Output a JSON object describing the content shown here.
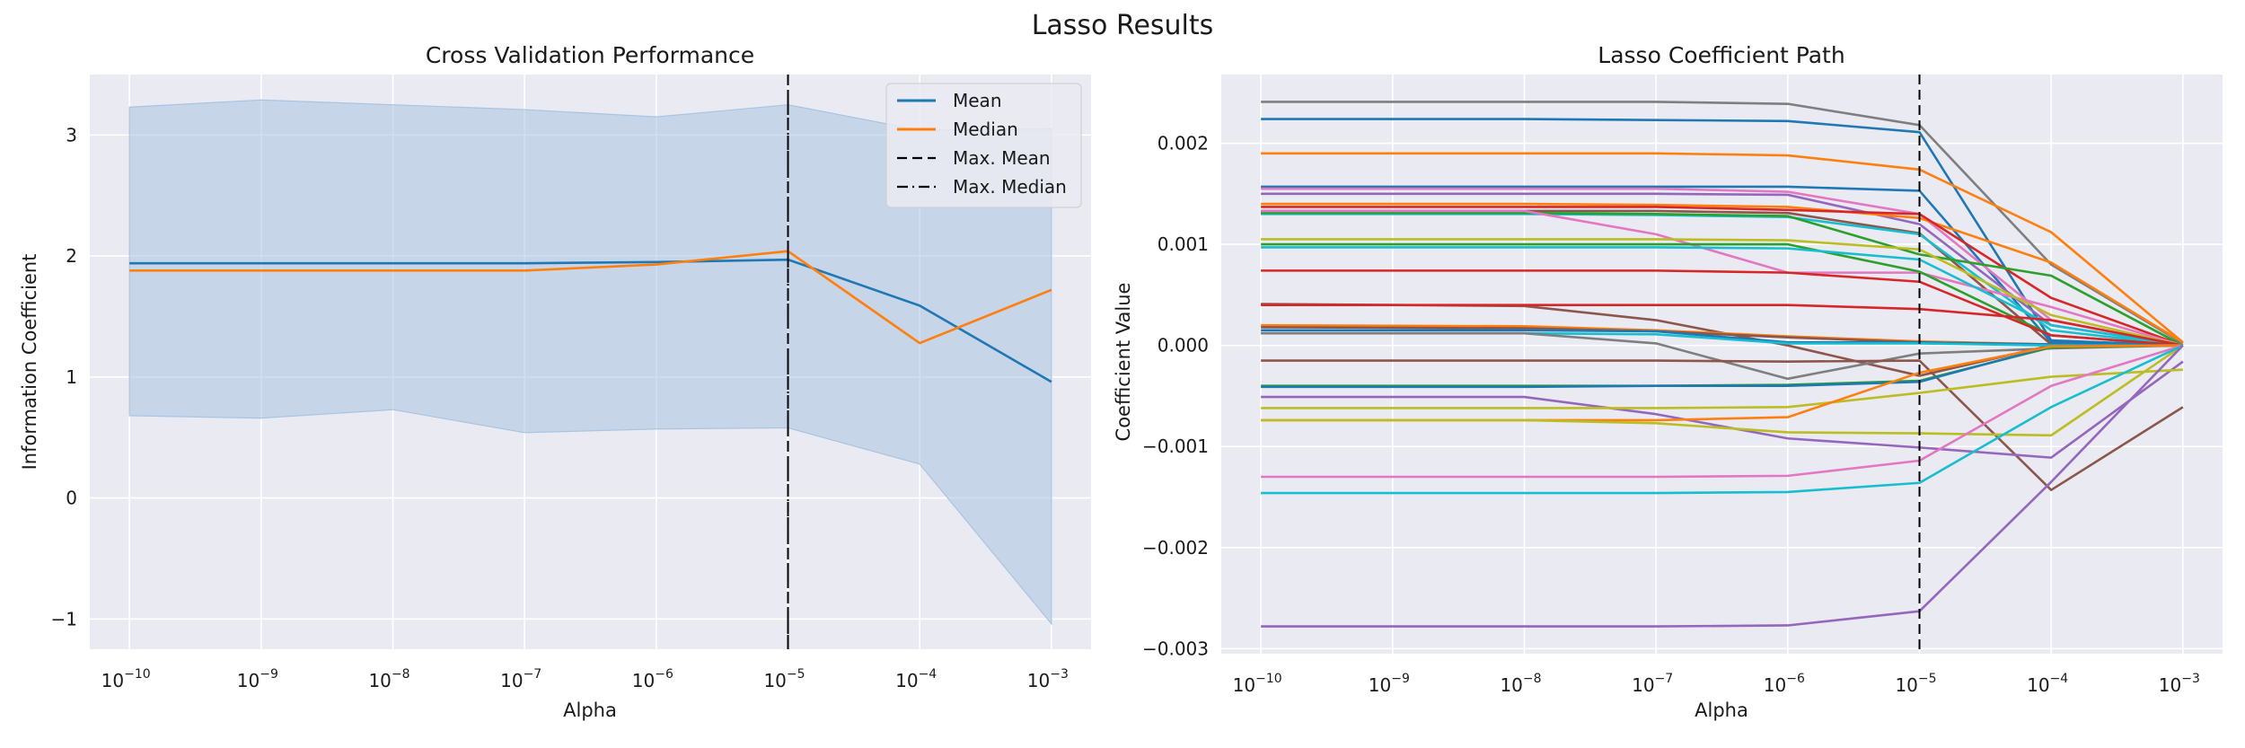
{
  "figure_title": "Lasso Results",
  "chart_data": [
    {
      "type": "line",
      "title": "Cross Validation Performance",
      "xlabel": "Alpha",
      "ylabel": "Information Coefficient",
      "xscale": "log",
      "x": [
        1e-10,
        1e-09,
        1e-08,
        1e-07,
        1e-06,
        1e-05,
        0.0001,
        0.001
      ],
      "xtick_exponents": [
        "−10",
        "−9",
        "−8",
        "−7",
        "−6",
        "−5",
        "−4",
        "−3"
      ],
      "xtick_base": "10",
      "xlim": [
        5e-11,
        0.002
      ],
      "ylim": [
        -1.25,
        3.5
      ],
      "yticks": [
        -1,
        0,
        1,
        2,
        3
      ],
      "ytick_labels": [
        "−1",
        "0",
        "1",
        "2",
        "3"
      ],
      "grid": true,
      "legend_position": "top-right",
      "band": {
        "upper": [
          3.23,
          3.29,
          3.25,
          3.21,
          3.15,
          3.25,
          3.04,
          3.05
        ],
        "lower": [
          0.68,
          0.66,
          0.73,
          0.54,
          0.57,
          0.58,
          0.28,
          -1.04
        ],
        "color": "#a8c4e0"
      },
      "series": [
        {
          "name": "Mean",
          "color": "#1f77b4",
          "values": [
            1.94,
            1.94,
            1.94,
            1.94,
            1.95,
            1.97,
            1.59,
            0.96
          ]
        },
        {
          "name": "Median",
          "color": "#ff7f0e",
          "values": [
            1.88,
            1.88,
            1.88,
            1.88,
            1.93,
            2.04,
            1.28,
            1.72
          ]
        }
      ],
      "legend": [
        {
          "label": "Mean",
          "style": "solid",
          "color": "#1f77b4"
        },
        {
          "label": "Median",
          "style": "solid",
          "color": "#ff7f0e"
        },
        {
          "label": "Max. Mean",
          "style": "dashed",
          "color": "#000000"
        },
        {
          "label": "Max. Median",
          "style": "dashdot",
          "color": "#000000"
        }
      ],
      "vlines": [
        {
          "x": 1e-05,
          "style": "dashed"
        },
        {
          "x": 1e-05,
          "style": "dashdot"
        }
      ]
    },
    {
      "type": "line",
      "title": "Lasso Coefficient Path",
      "xlabel": "Alpha",
      "ylabel": "Coefficient Value",
      "xscale": "log",
      "x": [
        1e-10,
        1e-08,
        1e-07,
        1e-06,
        1e-05,
        0.0001,
        0.001
      ],
      "xticks": [
        1e-10,
        1e-09,
        1e-08,
        1e-07,
        1e-06,
        1e-05,
        0.0001,
        0.001
      ],
      "xtick_exponents": [
        "−10",
        "−9",
        "−8",
        "−7",
        "−6",
        "−5",
        "−4",
        "−3"
      ],
      "xtick_base": "10",
      "xlim": [
        5e-11,
        0.002
      ],
      "ylim": [
        -0.00305,
        0.00268
      ],
      "yticks": [
        -0.003,
        -0.002,
        -0.001,
        0.0,
        0.001,
        0.002
      ],
      "ytick_labels": [
        "−0.003",
        "−0.002",
        "−0.001",
        "0.000",
        "0.001",
        "0.002"
      ],
      "grid": true,
      "vlines": [
        {
          "x": 1e-05,
          "style": "dashed"
        }
      ],
      "series": [
        {
          "color": "#7f7f7f",
          "values": [
            0.00241,
            0.00241,
            0.00241,
            0.00239,
            0.00218,
            0.0008,
            2e-05
          ]
        },
        {
          "color": "#1f77b4",
          "values": [
            0.00224,
            0.00224,
            0.00223,
            0.00222,
            0.00211,
            5e-05,
            0.0
          ]
        },
        {
          "color": "#ff7f0e",
          "values": [
            0.0019,
            0.0019,
            0.0019,
            0.00188,
            0.00174,
            0.00112,
            3e-05
          ]
        },
        {
          "color": "#1f77b4",
          "values": [
            0.00157,
            0.00157,
            0.00157,
            0.00157,
            0.00153,
            3e-05,
            0.0
          ]
        },
        {
          "color": "#e377c2",
          "values": [
            0.00155,
            0.00155,
            0.00155,
            0.00152,
            0.0013,
            0.00025,
            0.0
          ]
        },
        {
          "color": "#9467bd",
          "values": [
            0.0015,
            0.0015,
            0.0015,
            0.00149,
            0.0012,
            0.0002,
            0.0
          ]
        },
        {
          "color": "#ff7f0e",
          "values": [
            0.0014,
            0.0014,
            0.00139,
            0.00137,
            0.00126,
            0.00082,
            3e-05
          ]
        },
        {
          "color": "#d62728",
          "values": [
            0.00137,
            0.00137,
            0.00137,
            0.00134,
            0.0013,
            0.00047,
            0.0
          ]
        },
        {
          "color": "#8c564b",
          "values": [
            0.00133,
            0.00133,
            0.00133,
            0.00131,
            0.00111,
            1e-05,
            0.0
          ]
        },
        {
          "color": "#17becf",
          "values": [
            0.0013,
            0.0013,
            0.00129,
            0.00127,
            0.0011,
            0.00015,
            0.0
          ]
        },
        {
          "color": "#2ca02c",
          "values": [
            0.00131,
            0.00131,
            0.0013,
            0.00128,
            0.0009,
            0.00069,
            0.0
          ]
        },
        {
          "color": "#e377c2",
          "values": [
            0.00133,
            0.00133,
            0.0011,
            0.00072,
            0.00072,
            0.00038,
            0.0
          ]
        },
        {
          "color": "#bcbd22",
          "values": [
            0.00105,
            0.00105,
            0.00105,
            0.00104,
            0.00095,
            0.0003,
            0.0
          ]
        },
        {
          "color": "#2ca02c",
          "values": [
            0.001,
            0.001,
            0.001,
            0.001,
            0.00073,
            0.0001,
            0.0
          ]
        },
        {
          "color": "#17becf",
          "values": [
            0.00097,
            0.00097,
            0.00097,
            0.00096,
            0.00085,
            0.0002,
            0.0
          ]
        },
        {
          "color": "#d62728",
          "values": [
            0.00074,
            0.00074,
            0.00074,
            0.00072,
            0.00063,
            0.0001,
            0.0
          ]
        },
        {
          "color": "#8c564b",
          "values": [
            0.00041,
            0.00039,
            0.00025,
            0.0,
            -0.0003,
            0.0,
            0.0
          ]
        },
        {
          "color": "#d62728",
          "values": [
            0.0004,
            0.0004,
            0.0004,
            0.0004,
            0.00036,
            0.00025,
            0.0
          ]
        },
        {
          "color": "#ff7f0e",
          "values": [
            0.0002,
            0.00019,
            0.00015,
            9e-05,
            4e-05,
            1e-05,
            0.0
          ]
        },
        {
          "color": "#8c564b",
          "values": [
            0.00018,
            0.00017,
            0.00014,
            8e-05,
            3e-05,
            1e-05,
            0.0
          ]
        },
        {
          "color": "#1f77b4",
          "values": [
            0.00015,
            0.00015,
            0.00014,
            3e-05,
            3e-05,
            1e-05,
            0.0
          ]
        },
        {
          "color": "#17becf",
          "values": [
            0.00012,
            0.00012,
            0.00011,
            2e-05,
            2e-05,
            0.0,
            0.0
          ]
        },
        {
          "color": "#7f7f7f",
          "values": [
            0.00012,
            0.00012,
            2e-05,
            -0.00033,
            -8e-05,
            -3e-05,
            0.0
          ]
        },
        {
          "color": "#8c564b",
          "values": [
            -0.00015,
            -0.00015,
            -0.00015,
            -0.00016,
            -0.00015,
            -0.00143,
            -0.00061
          ]
        },
        {
          "color": "#2ca02c",
          "values": [
            -0.0004,
            -0.0004,
            -0.0004,
            -0.00039,
            -0.00035,
            -2e-05,
            0.0
          ]
        },
        {
          "color": "#1f77b4",
          "values": [
            -0.00041,
            -0.00041,
            -0.0004,
            -0.0004,
            -0.00036,
            -1e-05,
            0.0
          ]
        },
        {
          "color": "#9467bd",
          "values": [
            -0.00051,
            -0.00051,
            -0.00068,
            -0.00092,
            -0.00101,
            -0.00111,
            -0.00016
          ]
        },
        {
          "color": "#bcbd22",
          "values": [
            -0.00062,
            -0.00062,
            -0.00062,
            -0.00061,
            -0.00047,
            -0.00031,
            -0.00024
          ]
        },
        {
          "color": "#ff7f0e",
          "values": [
            -0.00074,
            -0.00074,
            -0.00074,
            -0.00071,
            -0.00027,
            -1e-05,
            0.0
          ]
        },
        {
          "color": "#bcbd22",
          "values": [
            -0.00074,
            -0.00074,
            -0.00077,
            -0.00086,
            -0.00087,
            -0.00089,
            0.0
          ]
        },
        {
          "color": "#e377c2",
          "values": [
            -0.0013,
            -0.0013,
            -0.0013,
            -0.00129,
            -0.00114,
            -0.0004,
            0.0
          ]
        },
        {
          "color": "#17becf",
          "values": [
            -0.00146,
            -0.00146,
            -0.00146,
            -0.00145,
            -0.00136,
            -0.00061,
            0.0
          ]
        },
        {
          "color": "#9467bd",
          "values": [
            -0.00278,
            -0.00278,
            -0.00278,
            -0.00277,
            -0.00263,
            -0.00135,
            0.0
          ]
        }
      ]
    }
  ]
}
